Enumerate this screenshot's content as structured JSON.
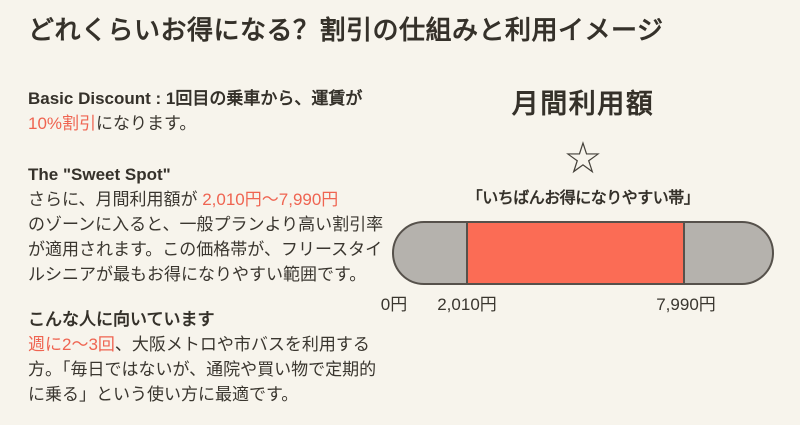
{
  "title": "どれくらいお得になる？割引の仕組みと利用イメージ",
  "colors": {
    "background": "#f7f4ec",
    "accent_text_red": "#ef6451",
    "bar_sweet_red": "#fb6c55",
    "bar_gray": "#b5b2ad",
    "bar_border": "#56514b",
    "text_dark": "#35312a"
  },
  "left": {
    "blocks": [
      {
        "name": "basic-discount",
        "lines": [
          {
            "segs": [
              {
                "t": "Basic Discount : 1回目の乗車から、運賃が",
                "style": "bold"
              }
            ]
          },
          {
            "segs": [
              {
                "t": "10%割引",
                "style": "red"
              },
              {
                "t": "になります。",
                "style": "normal"
              }
            ]
          }
        ]
      },
      {
        "name": "sweet-spot",
        "lines": [
          {
            "segs": [
              {
                "t": "The \"Sweet Spot\"",
                "style": "bold"
              }
            ]
          },
          {
            "segs": [
              {
                "t": "さらに、月間利用額が ",
                "style": "normal"
              },
              {
                "t": "2,010円〜7,990円",
                "style": "red"
              }
            ]
          },
          {
            "segs": [
              {
                "t": "のゾーンに入ると、一般プランより高い割引率",
                "style": "normal"
              }
            ]
          },
          {
            "segs": [
              {
                "t": "が適用されます。この価格帯が、フリースタイ",
                "style": "normal"
              }
            ]
          },
          {
            "segs": [
              {
                "t": "ルシニアが最もお得になりやすい範囲です。",
                "style": "normal"
              }
            ]
          }
        ]
      },
      {
        "name": "recommended-for",
        "lines": [
          {
            "segs": [
              {
                "t": "こんな人に向いています",
                "style": "bold"
              }
            ]
          },
          {
            "segs": [
              {
                "t": "週に2〜3回",
                "style": "red"
              },
              {
                "t": "、大阪メトロや市バスを利用する",
                "style": "normal"
              }
            ]
          },
          {
            "segs": [
              {
                "t": "方。「毎日ではないが、通院や買い物で定期的",
                "style": "normal"
              }
            ]
          },
          {
            "segs": [
              {
                "t": "に乗る」という使い方に最適です。",
                "style": "normal"
              }
            ]
          }
        ]
      }
    ]
  },
  "right": {
    "heading": "月間利用額",
    "star_icon": "☆",
    "band_label": "「いちばんお得になりやすい帯」",
    "bar": {
      "min_label": "0円",
      "sweet_start_label": "2,010円",
      "sweet_end_label": "7,990円",
      "sweet_start_value": 2010,
      "sweet_end_value": 7990,
      "min_value": 0
    }
  }
}
